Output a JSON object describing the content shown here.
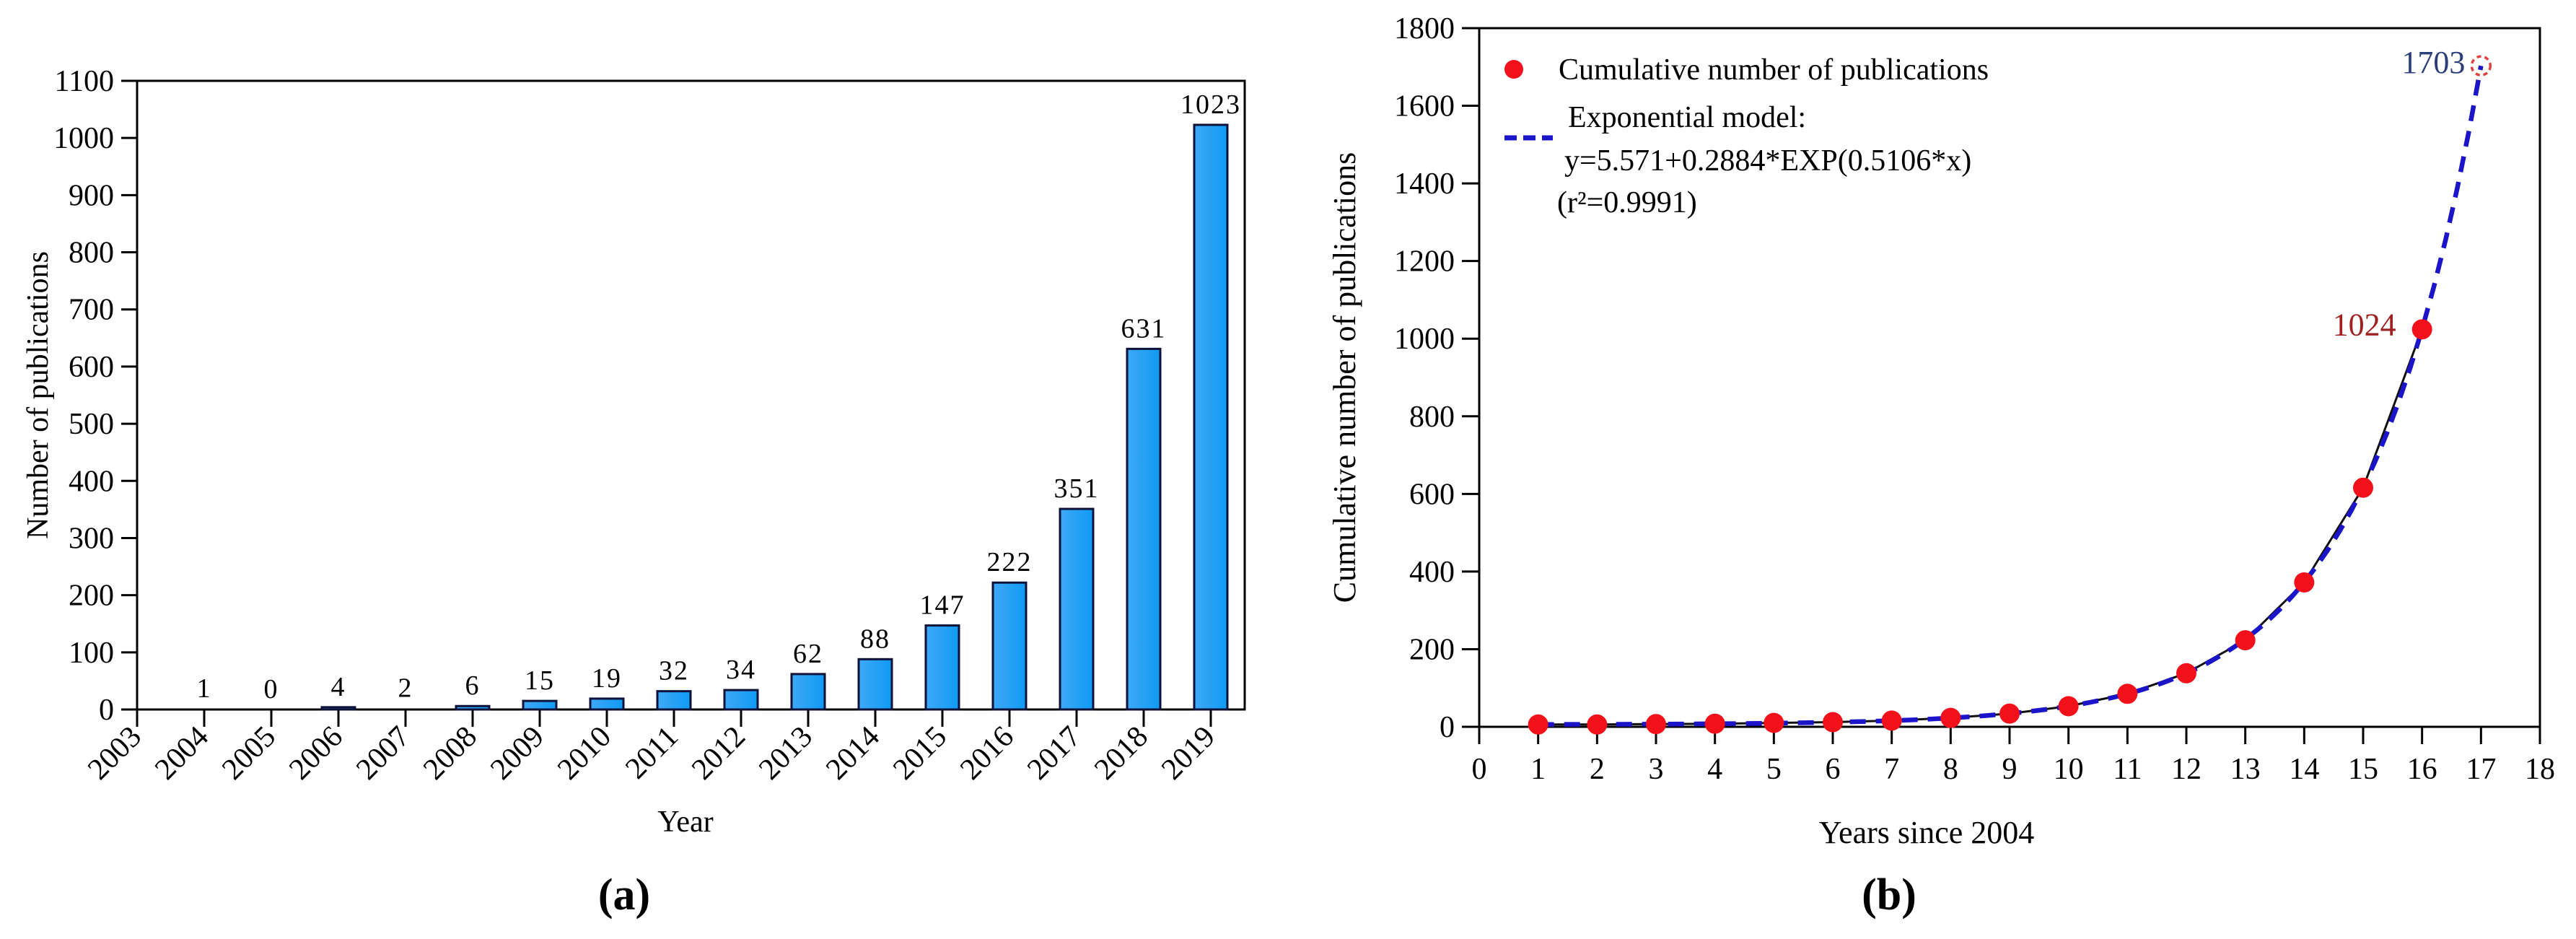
{
  "figure": {
    "background": "#ffffff",
    "panels": [
      {
        "label": "(a)"
      },
      {
        "label": "(b)"
      }
    ]
  },
  "chart_data": [
    {
      "type": "bar",
      "panel": "a",
      "title": "",
      "xlabel": "Year",
      "ylabel": "Number of publications",
      "ylim": [
        0,
        1100
      ],
      "yticks": [
        0,
        100,
        200,
        300,
        400,
        500,
        600,
        700,
        800,
        900,
        1000,
        1100
      ],
      "categories": [
        "2003",
        "2004",
        "2005",
        "2006",
        "2007",
        "2008",
        "2009",
        "2010",
        "2011",
        "2012",
        "2013",
        "2014",
        "2015",
        "2016",
        "2017",
        "2018",
        "2019"
      ],
      "values": [
        null,
        1,
        0,
        4,
        2,
        6,
        15,
        19,
        32,
        34,
        62,
        88,
        147,
        222,
        351,
        631,
        1023
      ],
      "bar_labels": [
        "",
        "1",
        "0",
        "4",
        "2",
        "6",
        "15",
        "19",
        "32",
        "34",
        "62",
        "88",
        "147",
        "222",
        "351",
        "631",
        "1023"
      ],
      "bar_color": "#0F9AF3",
      "bar_color_light": "#3FA8F6",
      "bar_edge_color": "#0E1238",
      "axis_color": "#000000",
      "grid": false,
      "legend_position": "none"
    },
    {
      "type": "scatter",
      "panel": "b",
      "title": "",
      "xlabel": "Years since 2004",
      "ylabel": "Cumulative number of publications",
      "xlim": [
        0,
        18
      ],
      "ylim": [
        0,
        1800
      ],
      "xticks": [
        0,
        1,
        2,
        3,
        4,
        5,
        6,
        7,
        8,
        9,
        10,
        11,
        12,
        13,
        14,
        15,
        16,
        17,
        18
      ],
      "yticks": [
        0,
        200,
        400,
        600,
        800,
        1000,
        1200,
        1400,
        1600,
        1800
      ],
      "series": [
        {
          "name": "Cumulative number of publications",
          "type": "scatter+line",
          "marker": "filled-circle",
          "marker_color": "#F2111B",
          "line_color": "#101010",
          "x": [
            1,
            2,
            3,
            4,
            5,
            6,
            7,
            8,
            9,
            10,
            11,
            12,
            13,
            14,
            15,
            16
          ],
          "y": [
            6,
            6,
            7,
            8,
            10,
            12,
            16,
            23,
            34,
            53,
            85,
            138,
            223,
            372,
            616,
            1024
          ]
        },
        {
          "name": "Exponential model",
          "type": "dashed-curve",
          "color": "#1B14C8",
          "model_intercept": 5.571,
          "model_coef": 0.2884,
          "model_rate": 0.5106,
          "x_start": 1,
          "x_end": 17
        }
      ],
      "extrapolated_point": {
        "x": 17,
        "y": 1703,
        "ring_color": "#E04040"
      },
      "annotations": [
        {
          "text": "1024",
          "color": "#9E2020",
          "x": 16,
          "y": 1024
        },
        {
          "text": "1703",
          "color": "#2B3E7A",
          "x": 17,
          "y": 1703
        }
      ],
      "legend": {
        "position": "upper-left",
        "item1_marker": "red-dot",
        "item1": "Cumulative number of publications",
        "item2_marker": "blue-dashed-line",
        "item2_line1": "Exponential model:",
        "item2_line2": "y=5.571+0.2884*EXP(0.5106*x)",
        "item2_line3": "(r²=0.9991)"
      },
      "axis_color": "#000000",
      "grid": false
    }
  ]
}
